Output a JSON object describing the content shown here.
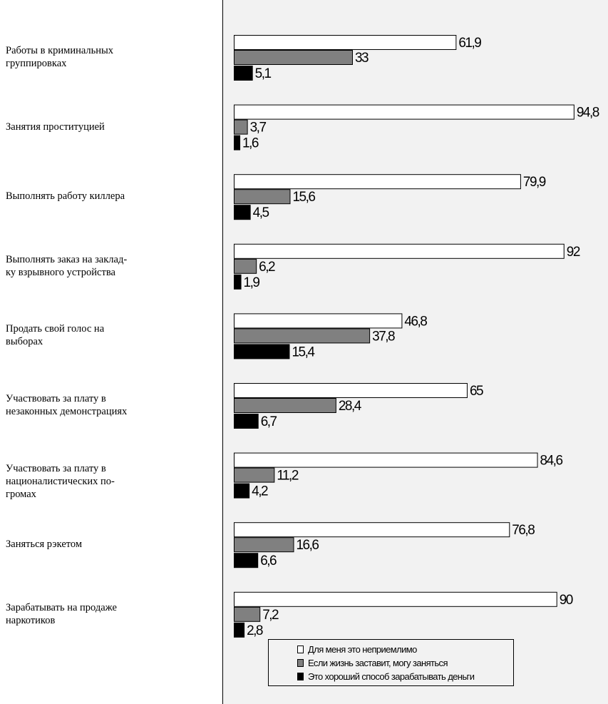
{
  "chart_data": {
    "type": "bar",
    "orientation": "horizontal",
    "categories": [
      "Работы в криминальных\nгруппировках",
      "Занятия проституцией",
      "Выполнять работу киллера",
      "Выполнять заказ на заклад-\nку взрывного устройства",
      "Продать свой голос на\nвыборах",
      "Участвовать за плату в\nнезаконных демонстрациях",
      "Участвовать за плату в\nнационалистических по-\nгромах",
      "Заняться рэкетом",
      "Зарабатывать на продаже\nнаркотиков"
    ],
    "series": [
      {
        "name": "Для меня это неприемлимо",
        "color": "#ffffff",
        "values": [
          61.9,
          94.8,
          79.9,
          92,
          46.8,
          65,
          84.6,
          76.8,
          90
        ],
        "labels": [
          "61,9",
          "94,8",
          "79,9",
          "92",
          "46,8",
          "65",
          "84,6",
          "76,8",
          "90"
        ]
      },
      {
        "name": "Если жизнь заставит, могу заняться",
        "color": "#808080",
        "values": [
          33,
          3.7,
          15.6,
          6.2,
          37.8,
          28.4,
          11.2,
          16.6,
          7.2
        ],
        "labels": [
          "33",
          "3,7",
          "15,6",
          "6,2",
          "37,8",
          "28,4",
          "11,2",
          "16,6",
          "7,2"
        ]
      },
      {
        "name": "Это хороший способ зарабатывать деньги",
        "color": "#000000",
        "values": [
          5.1,
          1.6,
          4.5,
          1.9,
          15.4,
          6.7,
          4.2,
          6.6,
          2.8
        ],
        "labels": [
          "5,1",
          "1,6",
          "4,5",
          "1,9",
          "15,4",
          "6,7",
          "4,2",
          "6,6",
          "2,8"
        ]
      }
    ],
    "xlim": [
      0,
      100
    ],
    "grid": false,
    "legend_position": "bottom-center"
  }
}
